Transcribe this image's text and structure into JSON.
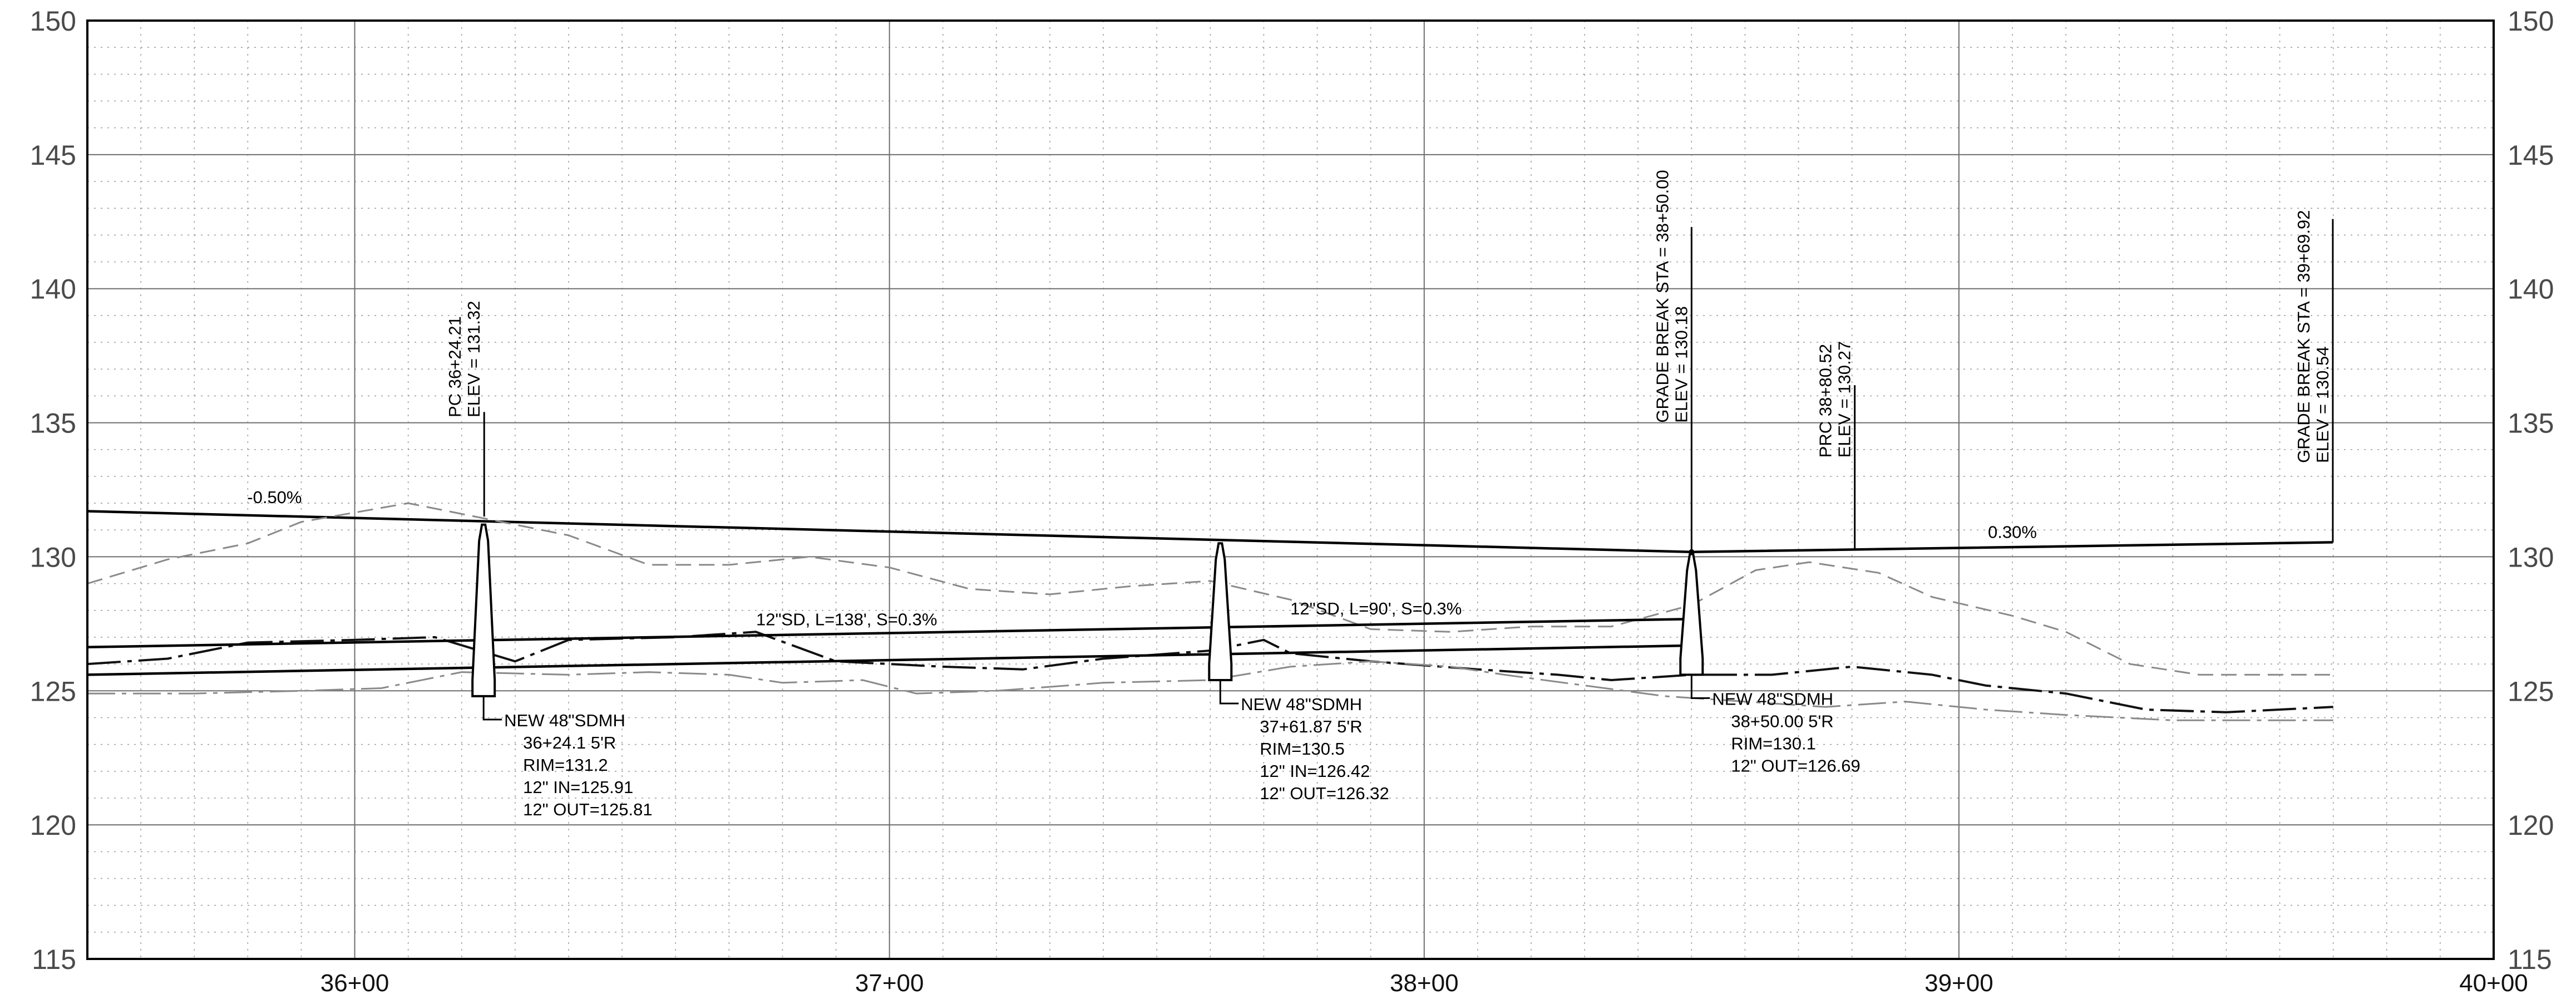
{
  "chart_data": {
    "type": "line",
    "title": "",
    "xlabel": "",
    "ylabel": "",
    "xlim": [
      3550,
      4000
    ],
    "ylim": [
      115,
      150
    ],
    "grid": true,
    "x_ticks": [
      {
        "x": 3600,
        "label": "36+00"
      },
      {
        "x": 3700,
        "label": "37+00"
      },
      {
        "x": 3800,
        "label": "38+00"
      },
      {
        "x": 3900,
        "label": "39+00"
      },
      {
        "x": 4000,
        "label": "40+00"
      }
    ],
    "y_ticks": [
      {
        "y": 115,
        "label": "115"
      },
      {
        "y": 120,
        "label": "120"
      },
      {
        "y": 125,
        "label": "125"
      },
      {
        "y": 130,
        "label": "130"
      },
      {
        "y": 135,
        "label": "135"
      },
      {
        "y": 140,
        "label": "140"
      },
      {
        "y": 145,
        "label": "145"
      },
      {
        "y": 150,
        "label": "150"
      }
    ],
    "series": [
      {
        "key": "proposed_grade",
        "style": "solid-bold",
        "points": [
          [
            3550,
            131.7
          ],
          [
            3850,
            130.18
          ],
          [
            3969.92,
            130.54
          ]
        ]
      },
      {
        "key": "existing_ground_dashed",
        "style": "dashed-gray",
        "points": [
          [
            3550,
            129.0
          ],
          [
            3565,
            129.9
          ],
          [
            3580,
            130.5
          ],
          [
            3590,
            131.3
          ],
          [
            3610,
            132.0
          ],
          [
            3625,
            131.4
          ],
          [
            3640,
            130.8
          ],
          [
            3655,
            129.7
          ],
          [
            3670,
            129.7
          ],
          [
            3685,
            130.0
          ],
          [
            3700,
            129.6
          ],
          [
            3715,
            128.8
          ],
          [
            3730,
            128.6
          ],
          [
            3745,
            128.9
          ],
          [
            3760,
            129.1
          ],
          [
            3775,
            128.4
          ],
          [
            3790,
            127.3
          ],
          [
            3805,
            127.2
          ],
          [
            3820,
            127.4
          ],
          [
            3835,
            127.4
          ],
          [
            3850,
            128.2
          ],
          [
            3862,
            129.5
          ],
          [
            3872,
            129.8
          ],
          [
            3885,
            129.4
          ],
          [
            3895,
            128.5
          ],
          [
            3910,
            127.8
          ],
          [
            3920,
            127.2
          ],
          [
            3932,
            126.0
          ],
          [
            3945,
            125.6
          ],
          [
            3970,
            125.6
          ]
        ]
      },
      {
        "key": "existing_ground_dashdot",
        "style": "dashdot-black",
        "points": [
          [
            3550,
            126.0
          ],
          [
            3565,
            126.2
          ],
          [
            3580,
            126.8
          ],
          [
            3600,
            126.9
          ],
          [
            3615,
            127.0
          ],
          [
            3630,
            126.1
          ],
          [
            3640,
            126.9
          ],
          [
            3660,
            127.0
          ],
          [
            3675,
            127.2
          ],
          [
            3690,
            126.1
          ],
          [
            3710,
            125.9
          ],
          [
            3725,
            125.8
          ],
          [
            3740,
            126.2
          ],
          [
            3760,
            126.5
          ],
          [
            3770,
            126.9
          ],
          [
            3775,
            126.4
          ],
          [
            3790,
            126.1
          ],
          [
            3810,
            125.8
          ],
          [
            3825,
            125.6
          ],
          [
            3835,
            125.4
          ],
          [
            3850,
            125.6
          ],
          [
            3865,
            125.6
          ],
          [
            3880,
            125.9
          ],
          [
            3895,
            125.6
          ],
          [
            3905,
            125.2
          ],
          [
            3920,
            124.9
          ],
          [
            3935,
            124.3
          ],
          [
            3950,
            124.2
          ],
          [
            3970,
            124.4
          ]
        ]
      },
      {
        "key": "existing_ground_thin",
        "style": "dashdot-gray",
        "points": [
          [
            3550,
            124.9
          ],
          [
            3570,
            124.9
          ],
          [
            3590,
            125.0
          ],
          [
            3605,
            125.1
          ],
          [
            3620,
            125.7
          ],
          [
            3640,
            125.6
          ],
          [
            3655,
            125.7
          ],
          [
            3670,
            125.6
          ],
          [
            3680,
            125.3
          ],
          [
            3695,
            125.4
          ],
          [
            3705,
            124.9
          ],
          [
            3720,
            125.0
          ],
          [
            3740,
            125.3
          ],
          [
            3760,
            125.4
          ],
          [
            3775,
            125.9
          ],
          [
            3790,
            126.1
          ],
          [
            3805,
            125.9
          ],
          [
            3815,
            125.6
          ],
          [
            3830,
            125.2
          ],
          [
            3845,
            124.8
          ],
          [
            3860,
            124.6
          ],
          [
            3875,
            124.4
          ],
          [
            3890,
            124.6
          ],
          [
            3905,
            124.3
          ],
          [
            3920,
            124.1
          ],
          [
            3940,
            123.9
          ],
          [
            3970,
            123.9
          ]
        ]
      },
      {
        "key": "pipe_top",
        "style": "solid-bold",
        "points": [
          [
            3550,
            126.63
          ],
          [
            3850,
            127.68
          ]
        ]
      },
      {
        "key": "pipe_invert",
        "style": "solid-bold",
        "points": [
          [
            3550,
            125.6
          ],
          [
            3850,
            126.69
          ]
        ]
      }
    ],
    "manholes": [
      {
        "sta": 3624.1,
        "rim": 131.2,
        "bottom": 124.8,
        "lines": [
          "NEW 48\"SDMH",
          "36+24.1  5'R",
          "RIM=131.2",
          "12\"  IN=125.91",
          "12\"  OUT=125.81"
        ]
      },
      {
        "sta": 3761.87,
        "rim": 130.5,
        "bottom": 125.4,
        "lines": [
          "NEW 48\"SDMH",
          "37+61.87  5'R",
          "RIM=130.5",
          "12\"  IN=126.42",
          "12\"  OUT=126.32"
        ]
      },
      {
        "sta": 3850.0,
        "rim": 130.1,
        "bottom": 125.6,
        "lines": [
          "NEW 48\"SDMH",
          "38+50.00  5'R",
          "RIM=130.1",
          "12\"  OUT=126.69"
        ]
      }
    ],
    "vertical_labels": [
      {
        "sta": 3624.21,
        "top": 135.2,
        "lines": [
          "PC 36+24.21",
          "ELEV = 131.32"
        ]
      },
      {
        "sta": 3850.0,
        "top": 135.0,
        "lines": [
          "GRADE BREAK STA = 38+50.00",
          "ELEV = 130.18"
        ]
      },
      {
        "sta": 3880.52,
        "top": 133.7,
        "lines": [
          "PRC 38+80.52",
          "ELEV = 130.27"
        ]
      },
      {
        "sta": 3969.92,
        "top": 133.5,
        "lines": [
          "GRADE BREAK STA = 39+69.92",
          "ELEV = 130.54"
        ]
      }
    ],
    "annotations": [
      {
        "x": 3585,
        "y": 132.0,
        "text": "-0.50%"
      },
      {
        "x": 3910,
        "y": 130.7,
        "text": "0.30%"
      },
      {
        "x": 3692,
        "y": 127.45,
        "text": "12\"SD, L=138', S=0.3%"
      },
      {
        "x": 3791,
        "y": 127.85,
        "text": "12\"SD, L=90', S=0.3%"
      }
    ]
  }
}
